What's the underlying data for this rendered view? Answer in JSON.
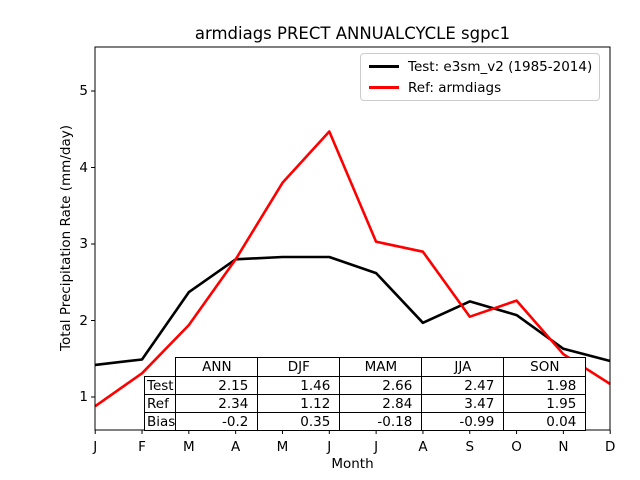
{
  "title": "armdiags PRECT ANNUALCYCLE sgpc1",
  "axes": {
    "ylabel": "Total Precipitation Rate (mm/day)",
    "xlabel": "Month",
    "ytick_labels": [
      "1",
      "2",
      "3",
      "4",
      "5"
    ],
    "axis_color": "#000000"
  },
  "legend": {
    "border_color": "#cccccc"
  },
  "chart_data": {
    "type": "line",
    "title": "armdiags PRECT ANNUALCYCLE sgpc1",
    "xlabel": "Month",
    "ylabel": "Total Precipitation Rate (mm/day)",
    "categories": [
      "J",
      "F",
      "M",
      "A",
      "M",
      "J",
      "J",
      "A",
      "S",
      "O",
      "N",
      "D"
    ],
    "yticks": [
      1,
      2,
      3,
      4,
      5
    ],
    "ylim": [
      0.57,
      5.58
    ],
    "grid": false,
    "legend_position": "upper right",
    "series": [
      {
        "name": "Test: e3sm_v2 (1985-2014)",
        "color": "#000000",
        "values": [
          1.42,
          1.49,
          2.37,
          2.8,
          2.83,
          2.83,
          2.62,
          1.97,
          2.25,
          2.07,
          1.63,
          1.47
        ]
      },
      {
        "name": "Ref: armdiags",
        "color": "#ff0000",
        "values": [
          0.88,
          1.31,
          1.94,
          2.8,
          3.8,
          4.47,
          3.03,
          2.9,
          2.05,
          2.26,
          1.56,
          1.17
        ]
      }
    ]
  },
  "table": {
    "columns": [
      "ANN",
      "DJF",
      "MAM",
      "JJA",
      "SON"
    ],
    "rows": [
      {
        "label": "Test",
        "values": [
          "2.15",
          "1.46",
          "2.66",
          "2.47",
          "1.98"
        ]
      },
      {
        "label": "Ref",
        "values": [
          "2.34",
          "1.12",
          "2.84",
          "3.47",
          "1.95"
        ]
      },
      {
        "label": "Bias",
        "values": [
          "-0.2",
          "0.35",
          "-0.18",
          "-0.99",
          "0.04"
        ]
      }
    ]
  }
}
